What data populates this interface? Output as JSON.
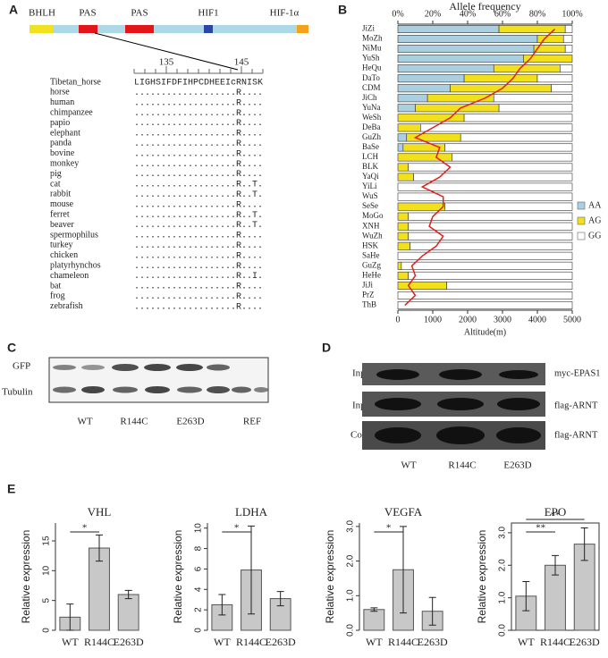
{
  "panel_labels": [
    "A",
    "B",
    "C",
    "D",
    "E"
  ],
  "domains": [
    "BHLH",
    "PAS",
    "PAS",
    "HIF1",
    "HIF-1α"
  ],
  "ruler": [
    135,
    145
  ],
  "alignment": [
    {
      "name": "Tibetan_horse",
      "sequence": "LIGHSIFDFIHPCDHEEIcRNISK"
    },
    {
      "name": "horse",
      "sequence": "...................R...."
    },
    {
      "name": "human",
      "sequence": "...................R...."
    },
    {
      "name": "chimpanzee",
      "sequence": "...................R...."
    },
    {
      "name": "papio",
      "sequence": "...................R...."
    },
    {
      "name": "elephant",
      "sequence": "...................R...."
    },
    {
      "name": "panda",
      "sequence": "...................R...."
    },
    {
      "name": "bovine",
      "sequence": "...................R...."
    },
    {
      "name": "monkey",
      "sequence": "...................R...."
    },
    {
      "name": "pig",
      "sequence": "...................R...."
    },
    {
      "name": "cat",
      "sequence": "...................R..T."
    },
    {
      "name": "rabbit",
      "sequence": "...................R..T."
    },
    {
      "name": "mouse",
      "sequence": "...................R...."
    },
    {
      "name": "ferret",
      "sequence": "...................R..T."
    },
    {
      "name": "beaver",
      "sequence": "...................R..T."
    },
    {
      "name": "spermophilus",
      "sequence": "...................R...."
    },
    {
      "name": "turkey",
      "sequence": "...................R...."
    },
    {
      "name": "chicken",
      "sequence": "...................R...."
    },
    {
      "name": "platyrhynchos",
      "sequence": "...................R...."
    },
    {
      "name": "chameleon",
      "sequence": "...................R..I."
    },
    {
      "name": "bat",
      "sequence": "...................R...."
    },
    {
      "name": "frog",
      "sequence": "...................R...."
    },
    {
      "name": "zebrafish",
      "sequence": "...................R...."
    }
  ],
  "blot_c": {
    "rows": [
      "GFP",
      "Tubulin"
    ],
    "lanes": [
      "WT",
      "R144C",
      "E263D",
      "REF"
    ]
  },
  "blot_d": {
    "left": [
      "Input",
      "Input",
      "Co-IP"
    ],
    "right": [
      "myc-EPAS1",
      "flag-ARNT",
      "flag-ARNT"
    ],
    "lanes": [
      "WT",
      "R144C",
      "E263D"
    ]
  },
  "chart_data": [
    {
      "type": "stackedbar",
      "title": "Allele frequency",
      "xlabel": "Altitude(m)",
      "categories": [
        "JiZi",
        "MoZh",
        "NiMu",
        "YuSh",
        "HeQu",
        "DaTo",
        "CDM",
        "JiCh",
        "YuNa",
        "WeSh",
        "DeBa",
        "GuZh",
        "BaSe",
        "LCH",
        "BLK",
        "YaQi",
        "YiLi",
        "WuS",
        "SeSe",
        "MoGo",
        "XNH",
        "WuZh",
        "HSK",
        "SaHe",
        "GuZg",
        "HeHe",
        "JiJi",
        "PrZ",
        "ThB"
      ],
      "series": [
        {
          "name": "AA",
          "color": "#a9cfe0",
          "values": [
            58,
            80,
            78,
            72,
            55,
            38,
            30,
            17,
            10,
            0,
            0,
            5,
            3,
            0,
            0,
            0,
            0,
            0,
            0,
            0,
            0,
            0,
            0,
            0,
            0,
            0,
            0,
            0,
            0
          ]
        },
        {
          "name": "AG",
          "color": "#f2e01c",
          "values": [
            38,
            15,
            18,
            28,
            38,
            42,
            58,
            38,
            48,
            38,
            13,
            31,
            24,
            31,
            6,
            9,
            0,
            0,
            27,
            6,
            6,
            6,
            7,
            0,
            2,
            6,
            28,
            0,
            0
          ]
        },
        {
          "name": "GG",
          "color": "#ffffff",
          "values": [
            4,
            5,
            4,
            0,
            7,
            20,
            12,
            45,
            42,
            62,
            87,
            64,
            73,
            69,
            94,
            91,
            100,
            100,
            73,
            94,
            94,
            94,
            93,
            100,
            98,
            94,
            72,
            100,
            100
          ]
        },
        {
          "type": "line",
          "axis": "x2",
          "color": "#e0201b",
          "values": [
            4500,
            4200,
            4000,
            3800,
            3500,
            3300,
            3000,
            2500,
            1800,
            1500,
            1000,
            500,
            1200,
            1100,
            1500,
            1200,
            700,
            1300,
            1300,
            1000,
            900,
            1300,
            1100,
            700,
            400,
            500,
            300,
            500,
            200
          ]
        }
      ],
      "xlim": [
        0,
        100
      ],
      "xticks": [
        {
          "value": 0,
          "label": "0%"
        },
        {
          "value": 20,
          "label": "20%"
        },
        {
          "value": 40,
          "label": "40%"
        },
        {
          "value": 60,
          "label": "60%"
        },
        {
          "value": 80,
          "label": "80%"
        },
        {
          "value": 100,
          "label": "100%"
        }
      ],
      "x2lim": [
        0,
        5000
      ],
      "x2ticks": [
        0,
        1000,
        2000,
        3000,
        4000,
        5000
      ],
      "legend": "right"
    },
    {
      "type": "bar",
      "title": "VHL",
      "ylabel": "Relative expression",
      "categories": [
        "WT",
        "R144C",
        "E263D"
      ],
      "values": [
        2.2,
        13.8,
        6.0
      ],
      "errors": [
        2.2,
        2.2,
        0.7
      ],
      "color": "#c8c8c8",
      "ylim": [
        0,
        18
      ],
      "yticks": [
        0,
        5,
        10,
        15
      ],
      "significance": [
        {
          "text": "*",
          "groups": [
            0,
            1
          ]
        }
      ],
      "box": false
    },
    {
      "type": "bar",
      "title": "LDHA",
      "ylabel": "Relative expression",
      "categories": [
        "WT",
        "R144C",
        "E263D"
      ],
      "values": [
        2.5,
        5.9,
        3.1
      ],
      "errors": [
        1.0,
        4.3,
        0.7
      ],
      "color": "#c8c8c8",
      "ylim": [
        0,
        10.5
      ],
      "yticks": [
        0,
        2,
        4,
        6,
        8,
        10
      ],
      "significance": [
        {
          "text": "*",
          "groups": [
            0,
            1
          ]
        }
      ],
      "box": false
    },
    {
      "type": "bar",
      "title": "VEGFA",
      "ylabel": "Relative expression",
      "categories": [
        "WT",
        "R144C",
        "E263D"
      ],
      "values": [
        0.6,
        1.75,
        0.55
      ],
      "errors": [
        0.05,
        1.25,
        0.4
      ],
      "color": "#c8c8c8",
      "ylim": [
        0,
        3.1
      ],
      "yticks": [
        {
          "value": 0,
          "label": "0.0"
        },
        {
          "value": 1,
          "label": "1.0"
        },
        {
          "value": 2,
          "label": "2.0"
        },
        {
          "value": 3,
          "label": "3.0"
        }
      ],
      "significance": [
        {
          "text": "*",
          "groups": [
            0,
            1
          ]
        }
      ],
      "box": false
    },
    {
      "type": "bar",
      "title": "EPO",
      "ylabel": "Relative expression",
      "categories": [
        "WT",
        "R144C",
        "E263D"
      ],
      "values": [
        1.05,
        2.0,
        2.65
      ],
      "errors": [
        0.45,
        0.3,
        0.5
      ],
      "color": "#c8c8c8",
      "ylim": [
        0,
        3.3
      ],
      "yticks": [
        {
          "value": 0,
          "label": "0.0"
        },
        {
          "value": 1,
          "label": "1.0"
        },
        {
          "value": 2,
          "label": "2.0"
        },
        {
          "value": 3,
          "label": "3.0"
        }
      ],
      "significance": [
        {
          "text": "**",
          "groups": [
            0,
            1
          ]
        },
        {
          "text": "**",
          "groups": [
            0,
            2
          ]
        }
      ],
      "box": true
    }
  ]
}
